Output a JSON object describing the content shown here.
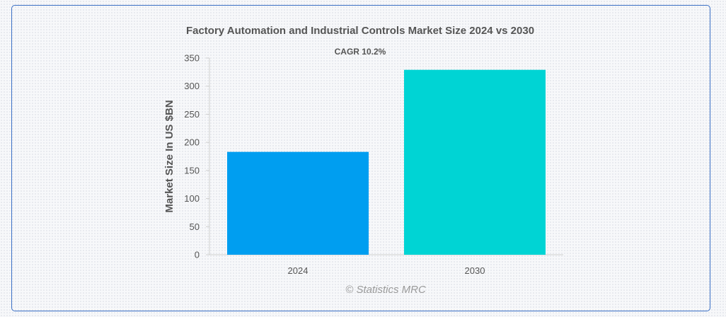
{
  "chart_data": {
    "type": "bar",
    "title": "Factory Automation and Industrial Controls Market Size 2024 vs 2030",
    "annotation": "CAGR 10.2%",
    "ylabel": "Market Size In US $BN",
    "xlabel": "",
    "categories": [
      "2024",
      "2030"
    ],
    "values": [
      183,
      329
    ],
    "colors": [
      "#009ef0",
      "#00d4d4"
    ],
    "ylim": [
      0,
      350
    ],
    "yticks": [
      0,
      50,
      100,
      150,
      200,
      250,
      300,
      350
    ],
    "grid": false,
    "legend": "none",
    "credit": "© Statistics MRC"
  }
}
